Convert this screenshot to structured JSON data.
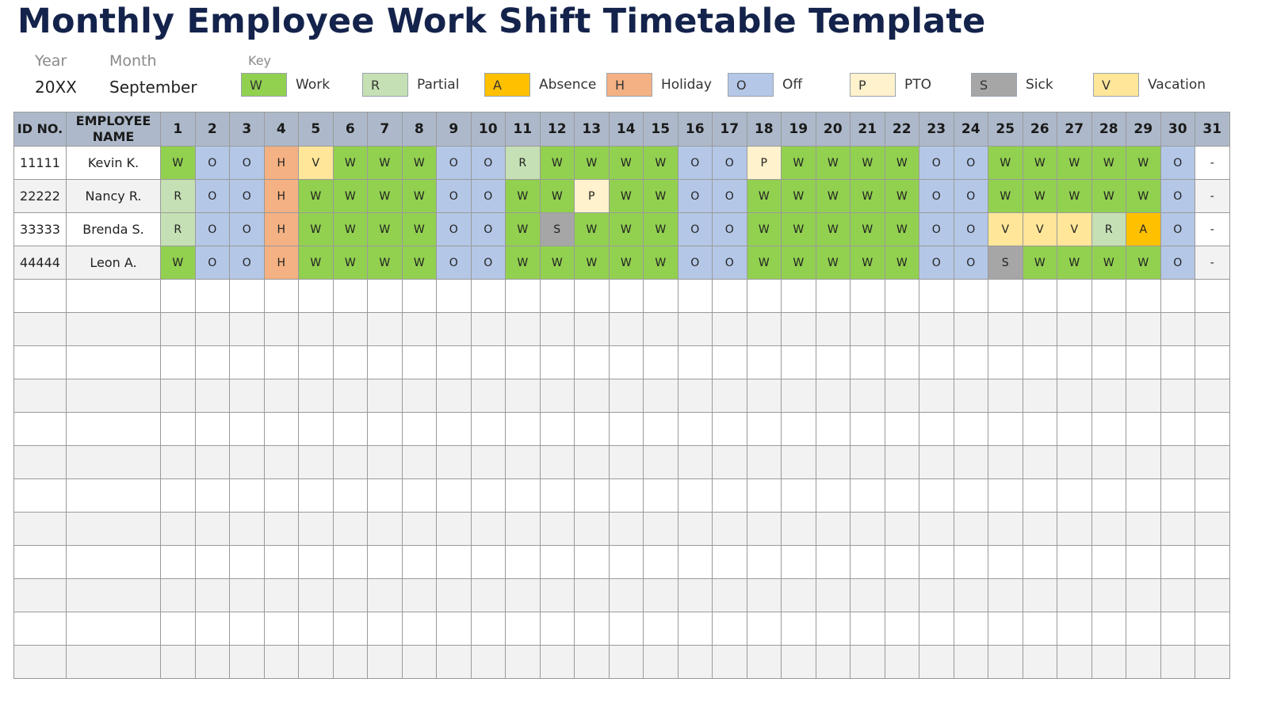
{
  "title": "Monthly Employee Work Shift Timetable Template",
  "meta": {
    "year_label": "Year",
    "year_value": "20XX",
    "month_label": "Month",
    "month_value": "September"
  },
  "key": {
    "label": "Key",
    "items": [
      {
        "code": "W",
        "label": "Work",
        "color": "#92d050"
      },
      {
        "code": "R",
        "label": "Partial",
        "color": "#c5e0b4"
      },
      {
        "code": "A",
        "label": "Absence",
        "color": "#ffc000"
      },
      {
        "code": "H",
        "label": "Holiday",
        "color": "#f4b183"
      },
      {
        "code": "O",
        "label": "Off",
        "color": "#b4c7e7"
      },
      {
        "code": "P",
        "label": "PTO",
        "color": "#fff2cc"
      },
      {
        "code": "S",
        "label": "Sick",
        "color": "#a6a6a6"
      },
      {
        "code": "V",
        "label": "Vacation",
        "color": "#ffe699"
      }
    ]
  },
  "table": {
    "header_bg": "#adb9ca",
    "col_id": "ID NO.",
    "col_name": "EMPLOYEE NAME",
    "days": [
      "1",
      "2",
      "3",
      "4",
      "5",
      "6",
      "7",
      "8",
      "9",
      "10",
      "11",
      "12",
      "13",
      "14",
      "15",
      "16",
      "17",
      "18",
      "19",
      "20",
      "21",
      "22",
      "23",
      "24",
      "25",
      "26",
      "27",
      "28",
      "29",
      "30",
      "31"
    ],
    "rows": [
      {
        "id": "11111",
        "name": "Kevin K.",
        "shifts": [
          "W",
          "O",
          "O",
          "H",
          "V",
          "W",
          "W",
          "W",
          "O",
          "O",
          "R",
          "W",
          "W",
          "W",
          "W",
          "O",
          "O",
          "P",
          "W",
          "W",
          "W",
          "W",
          "O",
          "O",
          "W",
          "W",
          "W",
          "W",
          "W",
          "O",
          "-"
        ]
      },
      {
        "id": "22222",
        "name": "Nancy R.",
        "shifts": [
          "R",
          "O",
          "O",
          "H",
          "W",
          "W",
          "W",
          "W",
          "O",
          "O",
          "W",
          "W",
          "P",
          "W",
          "W",
          "O",
          "O",
          "W",
          "W",
          "W",
          "W",
          "W",
          "O",
          "O",
          "W",
          "W",
          "W",
          "W",
          "W",
          "O",
          "-"
        ]
      },
      {
        "id": "33333",
        "name": "Brenda S.",
        "shifts": [
          "R",
          "O",
          "O",
          "H",
          "W",
          "W",
          "W",
          "W",
          "O",
          "O",
          "W",
          "S",
          "W",
          "W",
          "W",
          "O",
          "O",
          "W",
          "W",
          "W",
          "W",
          "W",
          "O",
          "O",
          "V",
          "V",
          "V",
          "R",
          "A",
          "O",
          "-"
        ]
      },
      {
        "id": "44444",
        "name": "Leon A.",
        "shifts": [
          "W",
          "O",
          "O",
          "H",
          "W",
          "W",
          "W",
          "W",
          "O",
          "O",
          "W",
          "W",
          "W",
          "W",
          "W",
          "O",
          "O",
          "W",
          "W",
          "W",
          "W",
          "W",
          "O",
          "O",
          "S",
          "W",
          "W",
          "W",
          "W",
          "O",
          "-"
        ]
      }
    ],
    "empty_rows": 12
  }
}
